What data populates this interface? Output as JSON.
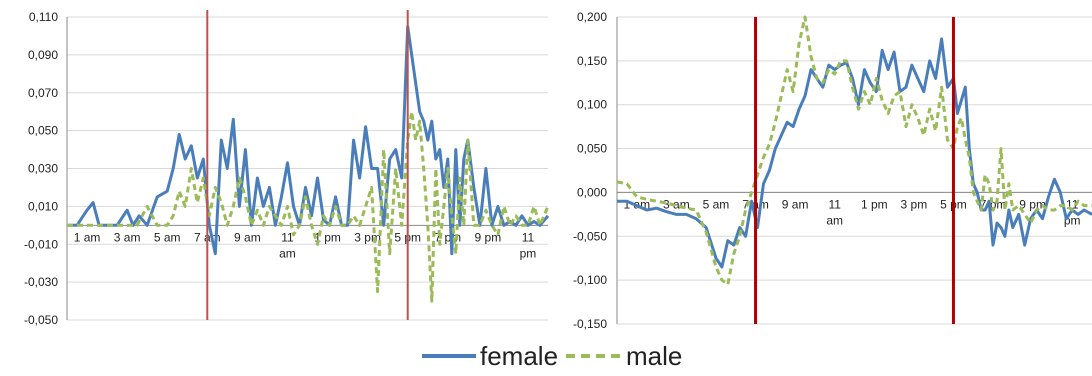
{
  "colors": {
    "female": "#4A7EBB",
    "male": "#9BBB59",
    "marker": "#C0504D",
    "marker_right": "#B00000",
    "grid": "#D9D9D9",
    "axis": "#888888"
  },
  "legend": {
    "female": "female",
    "male": "male"
  },
  "chart_data": [
    {
      "type": "line",
      "ylim": [
        -0.05,
        0.11
      ],
      "yticks": [
        "0,110",
        "0,090",
        "0,070",
        "0,050",
        "0,030",
        "0,010",
        "-0,010",
        "-0,030",
        "-0,050"
      ],
      "ytick_values": [
        0.11,
        0.09,
        0.07,
        0.05,
        0.03,
        0.01,
        -0.01,
        -0.03,
        -0.05
      ],
      "xticks": [
        [
          "1 am"
        ],
        [
          "3 am"
        ],
        [
          "5 am"
        ],
        [
          "7 am"
        ],
        [
          "9 am"
        ],
        [
          "11",
          "am"
        ],
        [
          "1 pm"
        ],
        [
          "3 pm"
        ],
        [
          "5 pm"
        ],
        [
          "7 pm"
        ],
        [
          "9 pm"
        ],
        [
          "11",
          "pm"
        ]
      ],
      "xtick_hours": [
        1,
        3,
        5,
        7,
        9,
        11,
        13,
        15,
        17,
        19,
        21,
        23
      ],
      "xlim": [
        0,
        24
      ],
      "vlines": [
        7,
        17
      ],
      "series": [
        {
          "name": "female",
          "style": "solid",
          "x": [
            0,
            0.5,
            1,
            1.3,
            1.6,
            2,
            2.5,
            3,
            3.3,
            3.6,
            4,
            4.5,
            5,
            5.3,
            5.6,
            5.9,
            6.2,
            6.5,
            6.8,
            7.1,
            7.4,
            7.7,
            8,
            8.3,
            8.6,
            8.9,
            9.2,
            9.5,
            9.8,
            10.1,
            10.4,
            10.7,
            11,
            11.3,
            11.6,
            11.9,
            12.2,
            12.5,
            12.8,
            13.1,
            13.4,
            13.7,
            14,
            14.3,
            14.6,
            14.9,
            15.2,
            15.5,
            15.8,
            16.1,
            16.4,
            16.7,
            17,
            17.2,
            17.4,
            17.6,
            17.8,
            18,
            18.2,
            18.4,
            18.6,
            18.8,
            19,
            19.2,
            19.4,
            19.6,
            19.8,
            20,
            20.3,
            20.6,
            20.9,
            21.2,
            21.5,
            21.8,
            22.1,
            22.4,
            22.7,
            23,
            23.3,
            23.6,
            24
          ],
          "y": [
            0.0,
            0.0,
            0.008,
            0.012,
            0.0,
            0.0,
            0.0,
            0.008,
            0.0,
            0.005,
            0.0,
            0.015,
            0.018,
            0.03,
            0.048,
            0.035,
            0.042,
            0.025,
            0.035,
            0.0,
            -0.015,
            0.045,
            0.03,
            0.056,
            0.01,
            0.04,
            0.0,
            0.025,
            0.01,
            0.02,
            0.0,
            0.015,
            0.033,
            0.01,
            0.0,
            0.02,
            0.005,
            0.025,
            0.003,
            0.0,
            0.015,
            0.0,
            0.0,
            0.045,
            0.025,
            0.052,
            0.03,
            0.03,
            0.0,
            0.035,
            0.04,
            0.025,
            0.105,
            0.09,
            0.075,
            0.06,
            0.055,
            0.045,
            0.055,
            0.035,
            0.04,
            0.02,
            0.035,
            -0.015,
            0.04,
            0.0,
            0.035,
            0.045,
            0.02,
            0.0,
            0.03,
            0.0,
            0.01,
            0.0,
            0.002,
            0.0,
            0.005,
            0.0,
            0.002,
            0.0,
            0.005
          ]
        },
        {
          "name": "male",
          "style": "dashed",
          "x": [
            0,
            0.5,
            1,
            1.5,
            2,
            2.5,
            3,
            3.5,
            4,
            4.5,
            5,
            5.3,
            5.6,
            5.9,
            6.2,
            6.5,
            6.8,
            7.1,
            7.4,
            7.7,
            8,
            8.3,
            8.6,
            8.9,
            9.2,
            9.5,
            9.8,
            10.1,
            10.4,
            10.7,
            11,
            11.3,
            11.6,
            11.9,
            12.2,
            12.5,
            12.8,
            13.1,
            13.4,
            13.7,
            14,
            14.3,
            14.6,
            14.9,
            15.2,
            15.5,
            15.8,
            16.1,
            16.4,
            16.7,
            17,
            17.2,
            17.4,
            17.6,
            17.8,
            18,
            18.2,
            18.4,
            18.6,
            18.8,
            19,
            19.2,
            19.4,
            19.6,
            19.8,
            20,
            20.3,
            20.6,
            20.9,
            21.2,
            21.5,
            21.8,
            22.1,
            22.4,
            22.7,
            23,
            23.3,
            23.6,
            24
          ],
          "y": [
            0.0,
            0.0,
            0.0,
            0.0,
            0.0,
            0.0,
            0.0,
            0.0,
            0.01,
            0.0,
            0.0,
            0.005,
            0.018,
            0.01,
            0.03,
            0.012,
            0.025,
            0.005,
            0.02,
            0.012,
            0.0,
            0.01,
            0.025,
            0.015,
            0.0,
            0.008,
            0.0,
            0.01,
            0.005,
            0.0,
            0.01,
            -0.005,
            0.0,
            0.015,
            0.0,
            -0.01,
            0.005,
            0.0,
            0.01,
            0.0,
            0.0,
            0.005,
            0.0,
            0.01,
            0.02,
            -0.035,
            0.04,
            -0.015,
            0.03,
            0.0,
            0.045,
            0.06,
            0.045,
            0.055,
            0.03,
            0.0,
            -0.04,
            0.03,
            -0.01,
            0.01,
            0.03,
            0.005,
            -0.015,
            0.025,
            0.0,
            0.045,
            0.0,
            0.0,
            0.008,
            0.0,
            -0.005,
            0.01,
            0.0,
            0.005,
            0.0,
            0.0,
            0.01,
            0.0,
            0.01
          ]
        }
      ]
    },
    {
      "type": "line",
      "ylim": [
        -0.15,
        0.2
      ],
      "yticks": [
        "0,200",
        "0,150",
        "0,100",
        "0,050",
        "0,000",
        "-0,050",
        "-0,100",
        "-0,150"
      ],
      "ytick_values": [
        0.2,
        0.15,
        0.1,
        0.05,
        0.0,
        -0.05,
        -0.1,
        -0.15
      ],
      "xticks": [
        [
          "1 am"
        ],
        [
          "3 am"
        ],
        [
          "5 am"
        ],
        [
          "7 am"
        ],
        [
          "9 am"
        ],
        [
          "11",
          "am"
        ],
        [
          "1 pm"
        ],
        [
          "3 pm"
        ],
        [
          "5 pm"
        ],
        [
          "7 pm"
        ],
        [
          "9 pm"
        ],
        [
          "11",
          "pm"
        ]
      ],
      "xtick_hours": [
        1,
        3,
        5,
        7,
        9,
        11,
        13,
        15,
        17,
        19,
        21,
        23
      ],
      "xlim": [
        0,
        24
      ],
      "vlines": [
        7,
        17
      ],
      "series": [
        {
          "name": "female",
          "style": "solid",
          "x": [
            0,
            0.5,
            1,
            1.5,
            2,
            2.5,
            3,
            3.5,
            4,
            4.5,
            5,
            5.3,
            5.6,
            5.9,
            6.2,
            6.5,
            6.8,
            7.1,
            7.4,
            7.7,
            8,
            8.3,
            8.6,
            8.9,
            9.2,
            9.5,
            9.8,
            10.1,
            10.4,
            10.7,
            11,
            11.3,
            11.6,
            11.9,
            12.2,
            12.5,
            12.8,
            13.1,
            13.4,
            13.7,
            14,
            14.3,
            14.6,
            14.9,
            15.2,
            15.5,
            15.8,
            16.1,
            16.4,
            16.7,
            17,
            17.2,
            17.4,
            17.6,
            17.8,
            18,
            18.2,
            18.4,
            18.6,
            18.8,
            19,
            19.2,
            19.4,
            19.6,
            19.8,
            20,
            20.3,
            20.6,
            20.9,
            21.2,
            21.5,
            21.8,
            22.1,
            22.4,
            22.7,
            23,
            23.3,
            23.6,
            24
          ],
          "y": [
            -0.01,
            -0.01,
            -0.015,
            -0.02,
            -0.018,
            -0.022,
            -0.025,
            -0.025,
            -0.03,
            -0.04,
            -0.075,
            -0.085,
            -0.055,
            -0.06,
            -0.04,
            -0.05,
            -0.01,
            -0.04,
            0.01,
            0.025,
            0.05,
            0.065,
            0.08,
            0.075,
            0.095,
            0.11,
            0.14,
            0.13,
            0.12,
            0.145,
            0.14,
            0.145,
            0.148,
            0.13,
            0.1,
            0.14,
            0.125,
            0.115,
            0.162,
            0.14,
            0.16,
            0.115,
            0.12,
            0.145,
            0.13,
            0.115,
            0.15,
            0.13,
            0.175,
            0.12,
            0.13,
            0.09,
            0.105,
            0.12,
            0.05,
            0.01,
            0.0,
            -0.02,
            -0.02,
            -0.01,
            -0.06,
            -0.035,
            -0.04,
            -0.05,
            -0.02,
            -0.04,
            -0.025,
            -0.06,
            -0.03,
            -0.02,
            -0.03,
            -0.005,
            0.015,
            0.0,
            -0.03,
            -0.02,
            -0.025,
            -0.02,
            -0.025
          ]
        },
        {
          "name": "male",
          "style": "dashed",
          "x": [
            0,
            0.5,
            1,
            1.5,
            2,
            2.5,
            3,
            3.5,
            4,
            4.5,
            5,
            5.3,
            5.6,
            5.9,
            6.2,
            6.5,
            6.8,
            7.1,
            7.4,
            7.7,
            8,
            8.3,
            8.6,
            8.9,
            9.2,
            9.5,
            9.8,
            10.1,
            10.4,
            10.7,
            11,
            11.3,
            11.6,
            11.9,
            12.2,
            12.5,
            12.8,
            13.1,
            13.4,
            13.7,
            14,
            14.3,
            14.6,
            14.9,
            15.2,
            15.5,
            15.8,
            16.1,
            16.4,
            16.7,
            17,
            17.2,
            17.4,
            17.6,
            17.8,
            18,
            18.2,
            18.4,
            18.6,
            18.8,
            19,
            19.2,
            19.4,
            19.6,
            19.8,
            20,
            20.3,
            20.6,
            20.9,
            21.2,
            21.5,
            21.8,
            22.1,
            22.4,
            22.7,
            23,
            23.3,
            23.6,
            24
          ],
          "y": [
            0.012,
            0.01,
            -0.005,
            -0.008,
            -0.01,
            -0.012,
            -0.015,
            -0.018,
            -0.02,
            -0.045,
            -0.085,
            -0.1,
            -0.105,
            -0.07,
            -0.05,
            -0.02,
            0.0,
            0.02,
            0.04,
            0.055,
            0.08,
            0.11,
            0.14,
            0.115,
            0.17,
            0.2,
            0.155,
            0.13,
            0.125,
            0.14,
            0.135,
            0.15,
            0.15,
            0.12,
            0.095,
            0.115,
            0.1,
            0.13,
            0.105,
            0.09,
            0.11,
            0.115,
            0.075,
            0.1,
            0.085,
            0.065,
            0.095,
            0.07,
            0.12,
            0.06,
            0.05,
            0.075,
            0.085,
            0.06,
            0.04,
            0.0,
            -0.01,
            -0.02,
            0.02,
            0.01,
            -0.02,
            -0.01,
            0.05,
            -0.02,
            0.01,
            -0.02,
            -0.015,
            -0.025,
            -0.035,
            -0.02,
            -0.015,
            -0.02,
            -0.02,
            -0.015,
            -0.015,
            -0.02,
            -0.01,
            -0.015,
            -0.015
          ]
        }
      ]
    }
  ]
}
